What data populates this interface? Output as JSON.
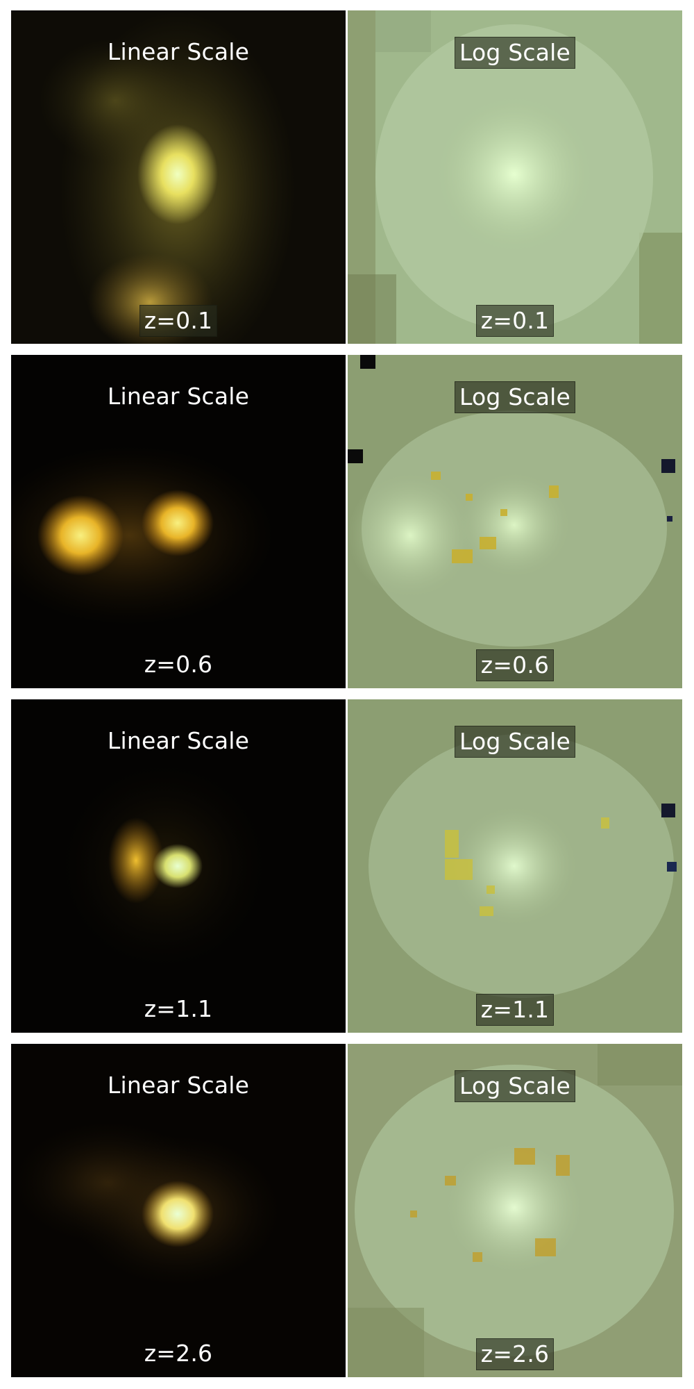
{
  "figure": {
    "rows": [
      {
        "linear": {
          "title": "Linear Scale",
          "redshift": "z=0.1"
        },
        "log": {
          "title": "Log Scale",
          "redshift": "z=0.1"
        }
      },
      {
        "linear": {
          "title": "Linear Scale",
          "redshift": "z=0.6"
        },
        "log": {
          "title": "Log Scale",
          "redshift": "z=0.6"
        }
      },
      {
        "linear": {
          "title": "Linear Scale",
          "redshift": "z=1.1"
        },
        "log": {
          "title": "Log Scale",
          "redshift": "z=1.1"
        }
      },
      {
        "linear": {
          "title": "Linear Scale",
          "redshift": "z=2.6"
        },
        "log": {
          "title": "Log Scale",
          "redshift": "z=2.6"
        }
      }
    ]
  },
  "colors": {
    "linear_background": "#050402",
    "log_background": "#8aa27a",
    "source_core": "#eaffc8",
    "source_glow": "#f2d24a",
    "figure_background": "#ffffff"
  }
}
